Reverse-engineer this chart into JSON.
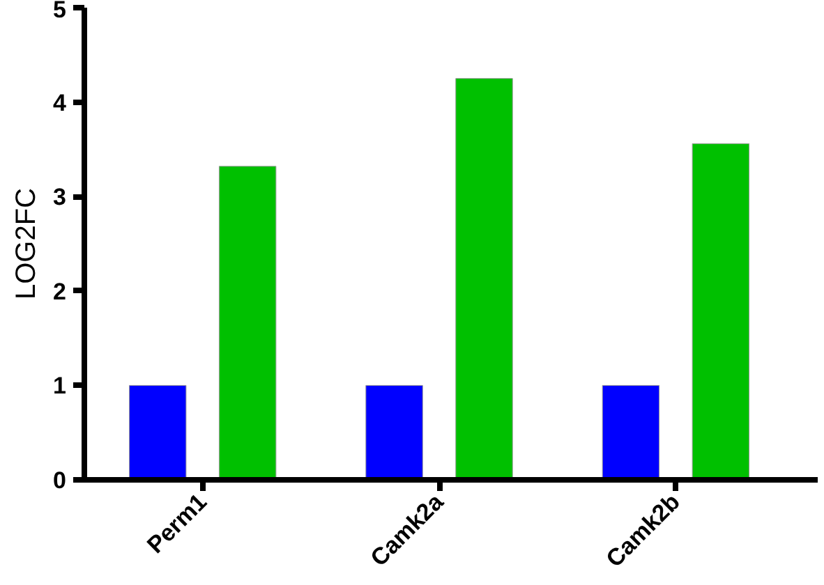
{
  "chart_data": {
    "type": "bar",
    "ylabel": "LOG2FC",
    "categories": [
      "Perm1",
      "Camk2a",
      "Camk2b"
    ],
    "series": [
      {
        "color": "#0000ff",
        "values": [
          1,
          1,
          1
        ]
      },
      {
        "color": "#00c000",
        "values": [
          3.32,
          4.25,
          3.56
        ]
      }
    ],
    "ylim": [
      0,
      5
    ],
    "yticks": [
      0,
      1,
      2,
      3,
      4,
      5
    ],
    "grid": false
  }
}
